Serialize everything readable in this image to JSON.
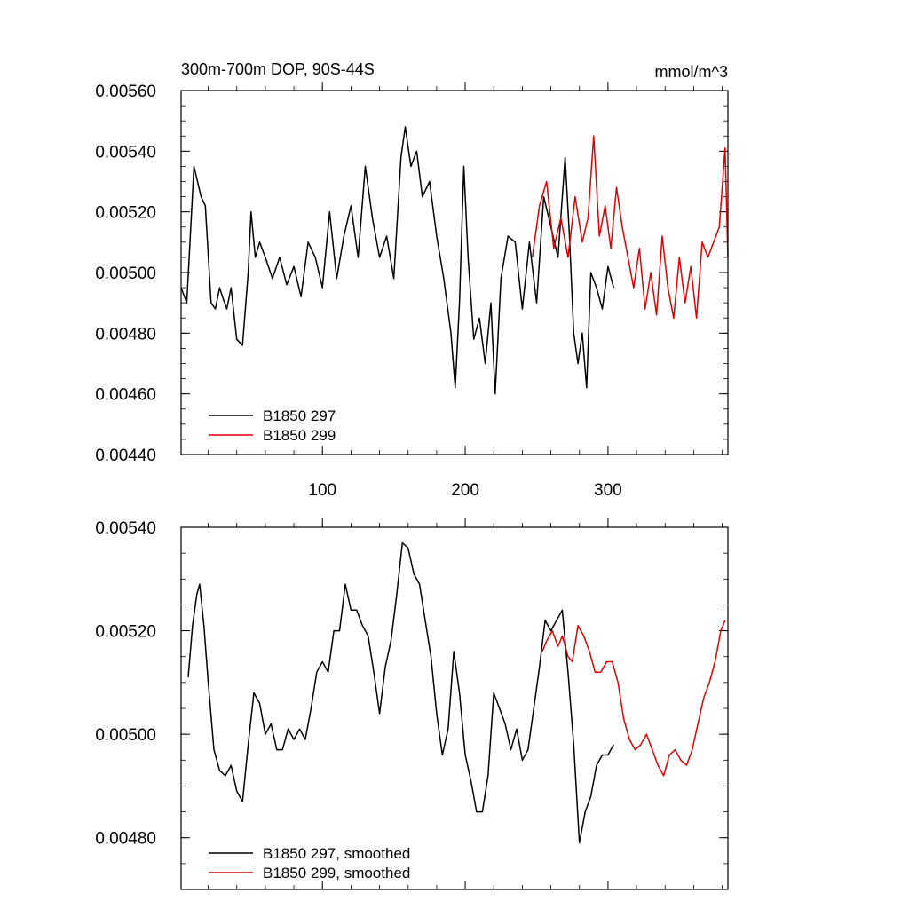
{
  "chart_data": [
    {
      "type": "line",
      "title_left": "300m-700m DOP, 90S-44S",
      "title_right": "mmol/m^3",
      "xlim": [
        1,
        384
      ],
      "ylim": [
        0.0044,
        0.0056
      ],
      "x_ticks": [
        100,
        200,
        300
      ],
      "x_tick_labels": [
        "100",
        "200",
        "300"
      ],
      "y_ticks": [
        0.0044,
        0.0046,
        0.0048,
        0.005,
        0.0052,
        0.0054,
        0.0056
      ],
      "y_tick_labels": [
        "0.00440",
        "0.00460",
        "0.00480",
        "0.00500",
        "0.00520",
        "0.00540",
        "0.00560"
      ],
      "legend_placement": "bottom-left",
      "series": [
        {
          "name": "B1850 297",
          "color": "#000000",
          "x": [
            1,
            5,
            10,
            15,
            18,
            22,
            25,
            28,
            30,
            33,
            36,
            40,
            44,
            48,
            50,
            53,
            56,
            60,
            65,
            70,
            75,
            80,
            85,
            90,
            95,
            100,
            105,
            110,
            115,
            120,
            125,
            130,
            135,
            140,
            145,
            150,
            155,
            158,
            162,
            166,
            170,
            175,
            180,
            185,
            190,
            193,
            196,
            199,
            202,
            206,
            210,
            214,
            218,
            221,
            225,
            230,
            235,
            240,
            245,
            250,
            255,
            260,
            265,
            270,
            273,
            276,
            279,
            282,
            285,
            288,
            292,
            296,
            300,
            304
          ],
          "values": [
            0.00495,
            0.0049,
            0.00535,
            0.00525,
            0.00522,
            0.0049,
            0.00488,
            0.00495,
            0.00492,
            0.00488,
            0.00495,
            0.00478,
            0.00476,
            0.005,
            0.0052,
            0.00505,
            0.0051,
            0.00505,
            0.00498,
            0.00505,
            0.00496,
            0.00502,
            0.00492,
            0.0051,
            0.00505,
            0.00495,
            0.0052,
            0.00498,
            0.00512,
            0.00522,
            0.00505,
            0.00535,
            0.00518,
            0.00505,
            0.00512,
            0.00498,
            0.00538,
            0.00548,
            0.00535,
            0.0054,
            0.00525,
            0.0053,
            0.00512,
            0.00498,
            0.0048,
            0.00462,
            0.0049,
            0.00535,
            0.00505,
            0.00478,
            0.00485,
            0.0047,
            0.0049,
            0.0046,
            0.00498,
            0.00512,
            0.0051,
            0.00488,
            0.0051,
            0.0049,
            0.00525,
            0.00515,
            0.00505,
            0.00538,
            0.00512,
            0.0048,
            0.0047,
            0.0048,
            0.00462,
            0.005,
            0.00495,
            0.00488,
            0.00502,
            0.00495
          ]
        },
        {
          "name": "B1850 299",
          "color": "#e00000",
          "x": [
            247,
            252,
            257,
            262,
            267,
            272,
            277,
            282,
            286,
            290,
            294,
            298,
            302,
            306,
            310,
            314,
            318,
            322,
            326,
            330,
            334,
            338,
            342,
            346,
            350,
            354,
            358,
            362,
            366,
            370,
            374,
            378,
            382,
            384
          ],
          "values": [
            0.00505,
            0.00522,
            0.0053,
            0.00508,
            0.00518,
            0.00505,
            0.00525,
            0.0051,
            0.00518,
            0.00545,
            0.00512,
            0.00522,
            0.00508,
            0.00528,
            0.00515,
            0.00505,
            0.00495,
            0.00508,
            0.00488,
            0.005,
            0.00486,
            0.00512,
            0.00495,
            0.00485,
            0.00505,
            0.0049,
            0.00502,
            0.00485,
            0.0051,
            0.00505,
            0.0051,
            0.00515,
            0.00541,
            0.00505
          ]
        }
      ]
    },
    {
      "type": "line",
      "xlim": [
        1,
        384
      ],
      "ylim": [
        0.0047,
        0.0054
      ],
      "x_ticks": [
        100,
        200,
        300
      ],
      "y_ticks": [
        0.0048,
        0.005,
        0.0052,
        0.0054
      ],
      "y_tick_labels": [
        "0.00480",
        "0.00500",
        "0.00520",
        "0.00540"
      ],
      "legend_placement": "bottom-left",
      "series": [
        {
          "name": "B1850 297, smoothed",
          "color": "#000000",
          "x": [
            6,
            9,
            12,
            14,
            17,
            20,
            24,
            28,
            32,
            36,
            40,
            44,
            48,
            52,
            56,
            60,
            64,
            68,
            72,
            76,
            80,
            84,
            88,
            92,
            96,
            100,
            104,
            108,
            112,
            116,
            120,
            124,
            128,
            132,
            136,
            140,
            144,
            148,
            152,
            156,
            160,
            164,
            168,
            172,
            176,
            180,
            184,
            188,
            192,
            196,
            200,
            204,
            208,
            212,
            216,
            220,
            224,
            228,
            232,
            236,
            240,
            244,
            248,
            252,
            256,
            260,
            264,
            268,
            272,
            276,
            280,
            284,
            288,
            292,
            296,
            300,
            304
          ],
          "values": [
            0.00511,
            0.00521,
            0.00527,
            0.00529,
            0.00521,
            0.0051,
            0.00497,
            0.00493,
            0.00492,
            0.00494,
            0.00489,
            0.00487,
            0.00498,
            0.00508,
            0.00506,
            0.005,
            0.00502,
            0.00497,
            0.00497,
            0.00501,
            0.00499,
            0.00501,
            0.00499,
            0.00505,
            0.00512,
            0.00514,
            0.00512,
            0.0052,
            0.0052,
            0.00529,
            0.00524,
            0.00524,
            0.00521,
            0.00519,
            0.00512,
            0.00504,
            0.00513,
            0.00518,
            0.00527,
            0.00537,
            0.00536,
            0.00531,
            0.00529,
            0.00522,
            0.00515,
            0.00504,
            0.00496,
            0.00501,
            0.00516,
            0.00508,
            0.00496,
            0.00491,
            0.00485,
            0.00485,
            0.00492,
            0.00508,
            0.00505,
            0.00502,
            0.00497,
            0.00501,
            0.00495,
            0.00497,
            0.00505,
            0.00513,
            0.00522,
            0.0052,
            0.00522,
            0.00524,
            0.00512,
            0.00498,
            0.00479,
            0.00485,
            0.00488,
            0.00494,
            0.00496,
            0.00496,
            0.00498
          ]
        },
        {
          "name": "B1850 299, smoothed",
          "color": "#e00000",
          "x": [
            254,
            257,
            261,
            265,
            268,
            272,
            275,
            279,
            283,
            287,
            291,
            295,
            299,
            303,
            307,
            311,
            315,
            319,
            323,
            327,
            331,
            335,
            339,
            343,
            347,
            351,
            355,
            359,
            363,
            367,
            371,
            375,
            379,
            382
          ],
          "values": [
            0.00516,
            0.00518,
            0.0052,
            0.00517,
            0.00519,
            0.00515,
            0.00514,
            0.00521,
            0.00519,
            0.00516,
            0.00512,
            0.00512,
            0.00514,
            0.00514,
            0.0051,
            0.00503,
            0.00499,
            0.00497,
            0.00498,
            0.005,
            0.00497,
            0.00494,
            0.00492,
            0.00496,
            0.00497,
            0.00495,
            0.00494,
            0.00497,
            0.00502,
            0.00507,
            0.0051,
            0.00514,
            0.0052,
            0.00522
          ]
        }
      ]
    }
  ]
}
